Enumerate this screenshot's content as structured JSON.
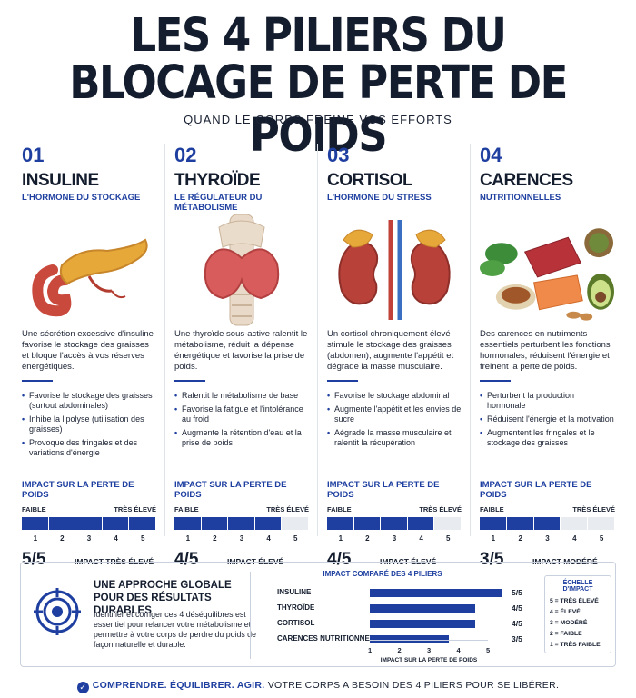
{
  "title_line1": "LES 4 PILIERS DU",
  "title_line2": "BLOCAGE DE PERTE DE POIDS",
  "subtitle": "QUAND LE CORPS FREINE VOS EFFORTS",
  "impact_heading": "IMPACT SUR LA PERTE DE POIDS",
  "scale_low": "FAIBLE",
  "scale_high": "TRÈS ÉLEVÉ",
  "ticks": [
    "1",
    "2",
    "3",
    "4",
    "5"
  ],
  "pillars": [
    {
      "num": "01",
      "name": "INSULINE",
      "subtitle": "L'HORMONE DU STOCKAGE",
      "description": "Une sécrétion excessive d'insuline favorise le stockage des graisses et bloque l'accès à vos réserves énergétiques.",
      "bullets": [
        "Favorise le stockage des graisses (surtout abdominales)",
        "Inhibe la lipolyse (utilisation des graisses)",
        "Provoque des fringales et des variations d'énergie"
      ],
      "score_value": 5,
      "score": "5/5",
      "impact_label": "IMPACT TRÈS ÉLEVÉ",
      "illustration": "pancreas-illustration"
    },
    {
      "num": "02",
      "name": "THYROÏDE",
      "subtitle": "LE RÉGULATEUR DU MÉTABOLISME",
      "description": "Une thyroïde sous-active ralentit le métabolisme, réduit la dépense énergétique et favorise la prise de poids.",
      "bullets": [
        "Ralentit le métabolisme de base",
        "Favorise la fatigue et l'intolérance au froid",
        "Augmente la rétention d'eau et la prise de poids"
      ],
      "score_value": 4,
      "score": "4/5",
      "impact_label": "IMPACT ÉLEVÉ",
      "illustration": "thyroid-illustration"
    },
    {
      "num": "03",
      "name": "CORTISOL",
      "subtitle": "L'HORMONE DU STRESS",
      "description": "Un cortisol chroniquement élevé stimule le stockage des graisses (abdomen), augmente l'appétit et dégrade la masse musculaire.",
      "bullets": [
        "Favorise le stockage abdominal",
        "Augmente l'appétit et les envies de sucre",
        "Aégrade la masse musculaire et ralentit la récupération"
      ],
      "score_value": 4,
      "score": "4/5",
      "impact_label": "IMPACT ÉLEVÉ",
      "illustration": "kidneys-adrenal-illustration"
    },
    {
      "num": "04",
      "name": "CARENCES",
      "subtitle": "NUTRITIONNELLES",
      "description": "Des carences en nutriments essentiels perturbent les fonctions hormonales, réduisent l'énergie et freinent la perte de poids.",
      "bullets": [
        "Perturbent la production hormonale",
        "Réduisent l'énergie et la motivation",
        "Augmentent les fringales et le stockage des graisses"
      ],
      "score_value": 3,
      "score": "3/5",
      "impact_label": "IMPACT MODÉRÉ",
      "illustration": "nutrient-foods-illustration"
    }
  ],
  "bottom": {
    "title": "UNE APPROCHE GLOBALE POUR DES RÉSULTATS DURABLES",
    "text": "Identifier et corriger ces 4 déséquilibres est essentiel pour relancer votre métabolisme et permettre à votre corps de perdre du poids de façon naturelle et durable.",
    "icon": "target-icon"
  },
  "comparison": {
    "title": "IMPACT COMPARÉ DES 4 PILIERS",
    "xlabel": "IMPACT SUR LA PERTE DE POIDS",
    "ticks": [
      "1",
      "2",
      "3",
      "4",
      "5"
    ],
    "rows": [
      {
        "label": "INSULINE",
        "value": 5,
        "text": "5/5"
      },
      {
        "label": "THYROÏDE",
        "value": 4,
        "text": "4/5"
      },
      {
        "label": "CORTISOL",
        "value": 4,
        "text": "4/5"
      },
      {
        "label": "CARENCES NUTRITIONNELLES",
        "value": 3,
        "text": "3/5"
      }
    ]
  },
  "legend": {
    "title": "ÉCHELLE D'IMPACT",
    "items": [
      "5 = TRÈS ÉLEVÉ",
      "4 = ÉLEVÉ",
      "3 = MODÉRÉ",
      "2 = FAIBLE",
      "1 = TRÈS FAIBLE"
    ]
  },
  "footer": {
    "highlight": "COMPRENDRE. ÉQUILIBRER. AGIR.",
    "text": " VOTRE CORPS A BESOIN DES 4 PILIERS POUR SE LIBÉRER."
  },
  "colors": {
    "accent": "#1e3fa0",
    "dark": "#141d2e",
    "bar_empty": "#e8ebf0"
  }
}
